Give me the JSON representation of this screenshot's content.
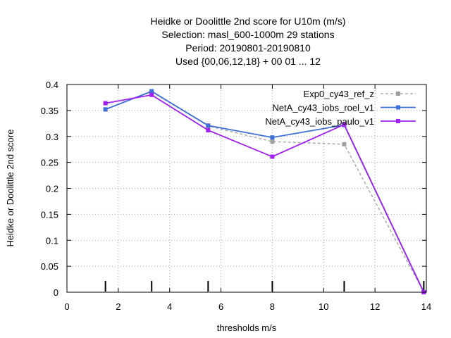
{
  "chart_data": {
    "type": "line",
    "title": [
      "Heidke or Doolittle 2nd score  for U10m (m/s)",
      "Selection: masl_600-1000m     29 stations",
      "Period: 20190801-20190810",
      "Used {00,06,12,18} + 00 01 ... 12"
    ],
    "xlabel": "thresholds m/s",
    "ylabel": "Heidke or Doolittle 2nd score",
    "xlim": [
      0,
      14
    ],
    "ylim": [
      0,
      0.4
    ],
    "x_ticks": [
      0,
      2,
      4,
      6,
      8,
      10,
      12,
      14
    ],
    "x_tick_labels": [
      "0",
      "2",
      "4",
      "6",
      "8",
      "10",
      "12",
      "14"
    ],
    "y_ticks": [
      0,
      0.05,
      0.1,
      0.15,
      0.2,
      0.25,
      0.3,
      0.35,
      0.4
    ],
    "y_tick_labels": [
      "0",
      "0.05",
      "0.1",
      "0.15",
      "0.2",
      "0.25",
      "0.3",
      "0.35",
      "0.4"
    ],
    "grid": true,
    "legend_position": "top-right",
    "threshold_markers": [
      1.5,
      3.3,
      5.5,
      8.0,
      10.8,
      13.9
    ],
    "series": [
      {
        "name": "Exp0_cy43_ref_z",
        "color": "#a0a0a0",
        "dashed": true,
        "x": [
          1.5,
          3.3,
          5.5,
          8.0,
          10.8,
          13.9
        ],
        "y": [
          0.352,
          0.386,
          0.32,
          0.29,
          0.285,
          0.0
        ]
      },
      {
        "name": "NetA_cy43_iobs_roel_v1",
        "color": "#3d6fd6",
        "dashed": false,
        "x": [
          1.5,
          3.3,
          5.5,
          8.0,
          10.8,
          13.9
        ],
        "y": [
          0.352,
          0.387,
          0.321,
          0.298,
          0.322,
          0.0
        ]
      },
      {
        "name": "NetA_cy43_iobs_paulo_v1",
        "color": "#a020f0",
        "dashed": false,
        "x": [
          1.5,
          3.3,
          5.5,
          8.0,
          10.8,
          13.9
        ],
        "y": [
          0.364,
          0.38,
          0.312,
          0.261,
          0.323,
          0.0
        ]
      }
    ]
  }
}
